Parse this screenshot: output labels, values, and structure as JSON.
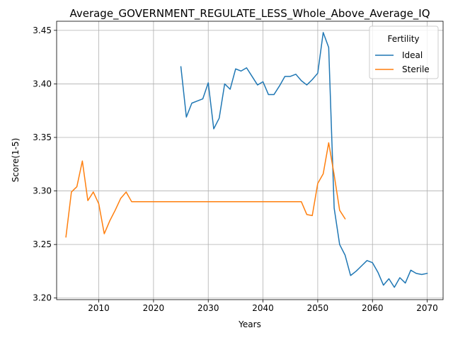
{
  "chart_data": {
    "type": "line",
    "title": "Average_GOVERNMENT_REGULATE_LESS_Whole_Above_Average_IQ",
    "xlabel": "Years",
    "ylabel": "Score(1-5)",
    "xlim": [
      2002.3,
      2072.9
    ],
    "ylim": [
      3.1985,
      3.4585
    ],
    "xticks": [
      2010,
      2020,
      2030,
      2040,
      2050,
      2060,
      2070
    ],
    "yticks": [
      3.2,
      3.25,
      3.3,
      3.35,
      3.4,
      3.45
    ],
    "ytick_labels": [
      "3.20",
      "3.25",
      "3.30",
      "3.35",
      "3.40",
      "3.45"
    ],
    "grid": true,
    "legend": {
      "title": "Fertility",
      "placement": "top-right"
    },
    "series": [
      {
        "name": "Ideal",
        "color": "#1f77b4",
        "x": [
          2025,
          2026,
          2027,
          2028,
          2029,
          2030,
          2031,
          2032,
          2033,
          2034,
          2035,
          2036,
          2037,
          2038,
          2039,
          2040,
          2041,
          2042,
          2043,
          2044,
          2045,
          2046,
          2047,
          2048,
          2049,
          2050,
          2051,
          2052,
          2053,
          2054,
          2055,
          2056,
          2057,
          2058,
          2059,
          2060,
          2061,
          2062,
          2063,
          2064,
          2065,
          2066,
          2067,
          2068,
          2069,
          2070
        ],
        "y": [
          3.416,
          3.369,
          3.382,
          3.384,
          3.386,
          3.401,
          3.358,
          3.368,
          3.4,
          3.395,
          3.414,
          3.412,
          3.415,
          3.407,
          3.399,
          3.402,
          3.39,
          3.39,
          3.398,
          3.407,
          3.407,
          3.409,
          3.403,
          3.399,
          3.404,
          3.41,
          3.448,
          3.434,
          3.284,
          3.25,
          3.24,
          3.221,
          3.225,
          3.23,
          3.235,
          3.233,
          3.224,
          3.212,
          3.218,
          3.21,
          3.219,
          3.214,
          3.226,
          3.223,
          3.222,
          3.223
        ]
      },
      {
        "name": "Sterile",
        "color": "#ff7f0e",
        "x": [
          2004,
          2005,
          2006,
          2007,
          2008,
          2009,
          2010,
          2011,
          2012,
          2013,
          2014,
          2015,
          2016,
          2017,
          2018,
          2019,
          2020,
          2021,
          2022,
          2023,
          2024,
          2025,
          2026,
          2027,
          2028,
          2029,
          2030,
          2031,
          2032,
          2033,
          2034,
          2035,
          2036,
          2037,
          2038,
          2039,
          2040,
          2041,
          2042,
          2043,
          2044,
          2045,
          2046,
          2047,
          2048,
          2049,
          2050,
          2051,
          2052,
          2053,
          2054,
          2055
        ],
        "y": [
          3.257,
          3.299,
          3.304,
          3.328,
          3.291,
          3.299,
          3.288,
          3.26,
          3.272,
          3.282,
          3.293,
          3.299,
          3.29,
          3.29,
          3.29,
          3.29,
          3.29,
          3.29,
          3.29,
          3.29,
          3.29,
          3.29,
          3.29,
          3.29,
          3.29,
          3.29,
          3.29,
          3.29,
          3.29,
          3.29,
          3.29,
          3.29,
          3.29,
          3.29,
          3.29,
          3.29,
          3.29,
          3.29,
          3.29,
          3.29,
          3.29,
          3.29,
          3.29,
          3.29,
          3.278,
          3.277,
          3.307,
          3.316,
          3.345,
          3.315,
          3.282,
          3.274
        ]
      }
    ]
  }
}
